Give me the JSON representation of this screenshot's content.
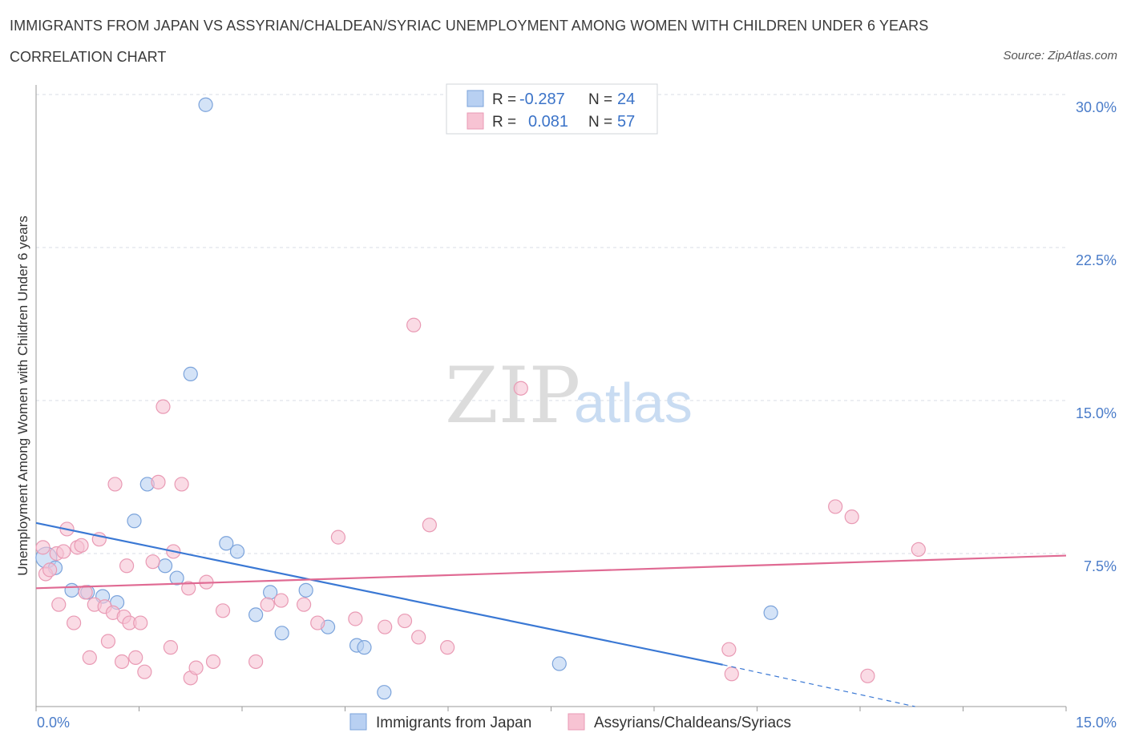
{
  "title": "IMMIGRANTS FROM JAPAN VS ASSYRIAN/CHALDEAN/SYRIAC UNEMPLOYMENT AMONG WOMEN WITH CHILDREN UNDER 6 YEARS",
  "subtitle": "CORRELATION CHART",
  "source": "Source: ZipAtlas.com",
  "watermark": {
    "zip": "ZIP",
    "atlas": "atlas"
  },
  "legend_top": {
    "rows": [
      {
        "r_label": "R =",
        "r_value": "-0.287",
        "n_label": "N =",
        "n_value": "24"
      },
      {
        "r_label": "R =",
        "r_value": "0.081",
        "n_label": "N =",
        "n_value": "57"
      }
    ]
  },
  "colors": {
    "blue_fill": "#b8d0f2",
    "blue_stroke": "#7ba3db",
    "blue_line": "#3a78d4",
    "pink_fill": "#f7c3d3",
    "pink_stroke": "#e99ab4",
    "pink_line": "#e06a93",
    "grid": "#d8dde6",
    "tick_text": "#4a7cc9"
  },
  "chart_data": {
    "type": "scatter",
    "title": "IMMIGRANTS FROM JAPAN VS ASSYRIAN/CHALDEAN/SYRIAC UNEMPLOYMENT AMONG WOMEN WITH CHILDREN UNDER 6 YEARS",
    "xlabel": "",
    "ylabel": "Unemployment Among Women with Children Under 6 years",
    "xlim": [
      0,
      15
    ],
    "ylim": [
      0,
      30
    ],
    "x_tick_labels": [
      "0.0%",
      "15.0%"
    ],
    "y_ticks": [
      7.5,
      15,
      22.5,
      30
    ],
    "y_tick_labels": [
      "7.5%",
      "15.0%",
      "22.5%",
      "30.0%"
    ],
    "grid": true,
    "legend_position": "top-center",
    "series": [
      {
        "name": "Immigrants from Japan",
        "color": "#b8d0f2",
        "points": [
          [
            0.15,
            7.3
          ],
          [
            0.28,
            6.8
          ],
          [
            0.52,
            5.7
          ],
          [
            0.75,
            5.6
          ],
          [
            0.97,
            5.4
          ],
          [
            1.18,
            5.1
          ],
          [
            1.43,
            9.1
          ],
          [
            1.62,
            10.9
          ],
          [
            1.88,
            6.9
          ],
          [
            2.05,
            6.3
          ],
          [
            2.25,
            16.3
          ],
          [
            2.47,
            29.5
          ],
          [
            2.77,
            8.0
          ],
          [
            2.93,
            7.6
          ],
          [
            3.2,
            4.5
          ],
          [
            3.41,
            5.6
          ],
          [
            3.58,
            3.6
          ],
          [
            3.93,
            5.7
          ],
          [
            4.25,
            3.9
          ],
          [
            4.67,
            3.0
          ],
          [
            4.78,
            2.9
          ],
          [
            5.07,
            0.7
          ],
          [
            7.62,
            2.1
          ],
          [
            10.7,
            4.6
          ]
        ]
      },
      {
        "name": "Assyrians/Chaldeans/Syriacs",
        "color": "#f7c3d3",
        "points": [
          [
            0.1,
            7.8
          ],
          [
            0.14,
            6.5
          ],
          [
            0.2,
            6.7
          ],
          [
            0.3,
            7.5
          ],
          [
            0.33,
            5.0
          ],
          [
            0.4,
            7.6
          ],
          [
            0.45,
            8.7
          ],
          [
            0.55,
            4.1
          ],
          [
            0.6,
            7.8
          ],
          [
            0.66,
            7.9
          ],
          [
            0.72,
            5.6
          ],
          [
            0.78,
            2.4
          ],
          [
            0.85,
            5.0
          ],
          [
            0.92,
            8.2
          ],
          [
            1.0,
            4.9
          ],
          [
            1.05,
            3.2
          ],
          [
            1.12,
            4.6
          ],
          [
            1.15,
            10.9
          ],
          [
            1.25,
            2.2
          ],
          [
            1.28,
            4.4
          ],
          [
            1.32,
            6.9
          ],
          [
            1.36,
            4.1
          ],
          [
            1.45,
            2.4
          ],
          [
            1.52,
            4.1
          ],
          [
            1.58,
            1.7
          ],
          [
            1.7,
            7.1
          ],
          [
            1.78,
            11.0
          ],
          [
            1.85,
            14.7
          ],
          [
            1.96,
            2.9
          ],
          [
            2.0,
            7.6
          ],
          [
            2.12,
            10.9
          ],
          [
            2.22,
            5.8
          ],
          [
            2.25,
            1.4
          ],
          [
            2.33,
            1.9
          ],
          [
            2.48,
            6.1
          ],
          [
            2.58,
            2.2
          ],
          [
            2.72,
            4.7
          ],
          [
            3.2,
            2.2
          ],
          [
            3.37,
            5.0
          ],
          [
            3.57,
            5.2
          ],
          [
            3.9,
            5.0
          ],
          [
            4.1,
            4.1
          ],
          [
            4.4,
            8.3
          ],
          [
            4.65,
            4.3
          ],
          [
            5.08,
            3.9
          ],
          [
            5.37,
            4.2
          ],
          [
            5.5,
            18.7
          ],
          [
            5.57,
            3.4
          ],
          [
            5.73,
            8.9
          ],
          [
            5.99,
            2.9
          ],
          [
            7.06,
            15.6
          ],
          [
            10.09,
            2.8
          ],
          [
            10.13,
            1.6
          ],
          [
            11.64,
            9.8
          ],
          [
            11.88,
            9.3
          ],
          [
            12.11,
            1.5
          ],
          [
            12.85,
            7.7
          ]
        ]
      }
    ],
    "trendlines": [
      {
        "series": "Immigrants from Japan",
        "x": [
          0,
          10.0
        ],
        "y": [
          9.0,
          2.05
        ],
        "dashed_to": [
          12.8,
          0.0
        ]
      },
      {
        "series": "Assyrians/Chaldeans/Syriacs",
        "x": [
          0,
          15
        ],
        "y": [
          5.8,
          7.4
        ]
      }
    ]
  },
  "bottom_legend": [
    {
      "label": "Immigrants from Japan"
    },
    {
      "label": "Assyrians/Chaldeans/Syriacs"
    }
  ]
}
